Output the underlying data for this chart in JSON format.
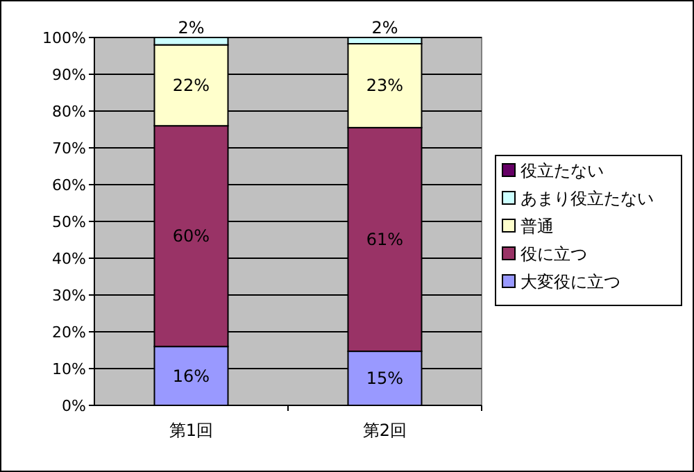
{
  "chart_data": {
    "type": "bar",
    "stacked": true,
    "categories": [
      "第1回",
      "第2回"
    ],
    "series": [
      {
        "name": "大変役に立つ",
        "color": "#9999ff",
        "values": [
          16,
          14.7
        ],
        "value_labels": [
          "16%",
          "15%"
        ]
      },
      {
        "name": "役に立つ",
        "color": "#993366",
        "values": [
          60,
          60.8
        ],
        "value_labels": [
          "60%",
          "61%"
        ]
      },
      {
        "name": "普通",
        "color": "#ffffcc",
        "values": [
          22,
          22.8
        ],
        "value_labels": [
          "22%",
          "23%"
        ]
      },
      {
        "name": "あまり役立たない",
        "color": "#ccffff",
        "values": [
          2,
          1.7
        ],
        "value_labels": [
          "2%",
          "2%"
        ]
      },
      {
        "name": "役立たない",
        "color": "#660066",
        "values": [
          0,
          0
        ],
        "value_labels": [
          null,
          null
        ]
      }
    ],
    "ylim": [
      0,
      100
    ],
    "yticks": [
      {
        "value": 0,
        "label": "0%"
      },
      {
        "value": 10,
        "label": "10%"
      },
      {
        "value": 20,
        "label": "20%"
      },
      {
        "value": 30,
        "label": "30%"
      },
      {
        "value": 40,
        "label": "40%"
      },
      {
        "value": 50,
        "label": "50%"
      },
      {
        "value": 60,
        "label": "60%"
      },
      {
        "value": 70,
        "label": "70%"
      },
      {
        "value": 80,
        "label": "80%"
      },
      {
        "value": 90,
        "label": "90%"
      },
      {
        "value": 100,
        "label": "100%"
      }
    ],
    "grid": "y",
    "legend": "right"
  }
}
